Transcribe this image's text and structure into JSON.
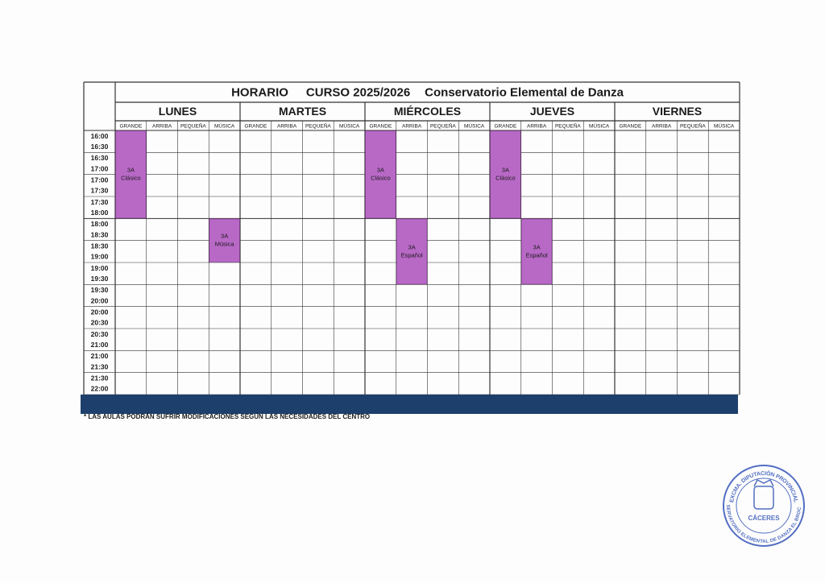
{
  "header": {
    "label": "HORARIO",
    "course": "CURSO 2025/2026",
    "school": "Conservatorio Elemental de Danza"
  },
  "days": [
    "LUNES",
    "MARTES",
    "MIÉRCOLES",
    "JUEVES",
    "VIERNES"
  ],
  "rooms": [
    "GRANDE",
    "ARRIBA",
    "PEQUEÑA",
    "MÚSICA"
  ],
  "slots": [
    [
      "16:00",
      "16:30"
    ],
    [
      "16:30",
      "17:00"
    ],
    [
      "17:00",
      "17:30"
    ],
    [
      "17:30",
      "18:00"
    ],
    [
      "18:00",
      "18:30"
    ],
    [
      "18:30",
      "19:00"
    ],
    [
      "19:00",
      "19:30"
    ],
    [
      "19:30",
      "20:00"
    ],
    [
      "20:00",
      "20:30"
    ],
    [
      "20:30",
      "21:00"
    ],
    [
      "21:00",
      "21:30"
    ],
    [
      "21:30",
      "22:00"
    ]
  ],
  "events": [
    {
      "day": "LUNES",
      "room": "GRANDE",
      "start": "16:00",
      "end": "18:00",
      "group": "3A",
      "subject": "Clásico"
    },
    {
      "day": "LUNES",
      "room": "MÚSICA",
      "start": "18:00",
      "end": "19:00",
      "group": "3A",
      "subject": "Música"
    },
    {
      "day": "MIÉRCOLES",
      "room": "GRANDE",
      "start": "16:00",
      "end": "18:00",
      "group": "3A",
      "subject": "Clásico"
    },
    {
      "day": "MIÉRCOLES",
      "room": "ARRIBA",
      "start": "18:00",
      "end": "19:30",
      "group": "3A",
      "subject": "Español"
    },
    {
      "day": "JUEVES",
      "room": "GRANDE",
      "start": "16:00",
      "end": "18:00",
      "group": "3A",
      "subject": "Clásico"
    },
    {
      "day": "JUEVES",
      "room": "ARRIBA",
      "start": "18:00",
      "end": "19:30",
      "group": "3A",
      "subject": "Español"
    }
  ],
  "footnote": "* LAS AULAS PODRÁN SUFRIR MODIFICACIONES SEGÚN LAS NECESIDADES DEL CENTRO",
  "stamp": {
    "top": "EXCMA. DIPUTACIÓN PROVINCIAL",
    "bottom": "CONSERVATORIO ELEMENTAL DE DANZA EL BROCENSE",
    "city": "CÁCERES"
  }
}
